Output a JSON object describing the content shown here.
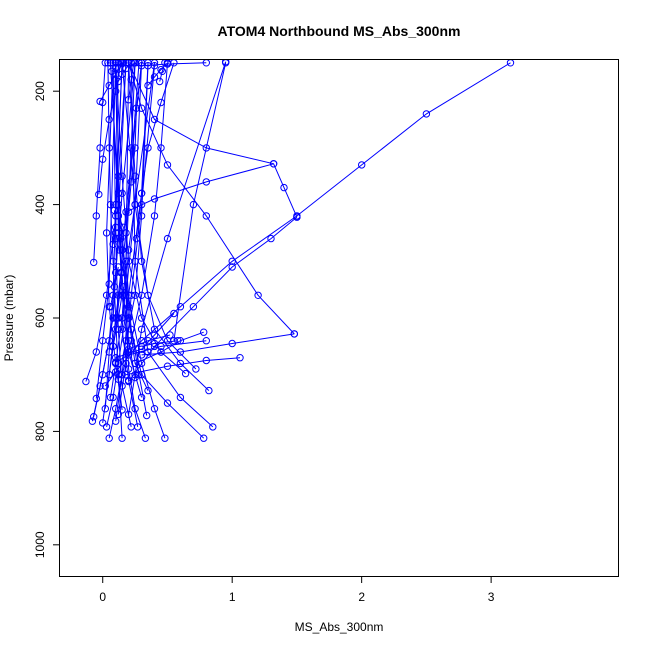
{
  "chart_data": {
    "type": "line",
    "title": "ATOM4 Northbound MS_Abs_300nm",
    "xlabel": "MS_Abs_300nm",
    "ylabel": "Pressure (mbar)",
    "xlim": [
      -0.33,
      3.98
    ],
    "ylim": [
      1055,
      145
    ],
    "y_reversed": true,
    "x_ticks": [
      0,
      1,
      2,
      3
    ],
    "y_ticks": [
      200,
      400,
      600,
      800,
      1000
    ],
    "x_tick_labels": [
      "0",
      "1",
      "2",
      "3"
    ],
    "y_tick_labels": [
      "200",
      "400",
      "600",
      "800",
      "1000"
    ],
    "grid": false,
    "legend": "none",
    "color": "#0000ff",
    "series": [
      {
        "x": [
          0.05,
          0.1,
          0.15,
          0.22,
          0.3,
          0.4,
          0.45,
          0.5
        ],
        "y": [
          812,
          760,
          700,
          640,
          560,
          420,
          300,
          150
        ]
      },
      {
        "x": [
          0.15,
          0.12,
          0.1,
          0.08,
          0.06,
          0.05,
          0.04
        ],
        "y": [
          812,
          700,
          600,
          500,
          400,
          300,
          150
        ]
      },
      {
        "x": [
          0.78,
          0.5,
          0.3,
          0.2,
          0.15,
          0.12,
          0.18
        ],
        "y": [
          812,
          750,
          700,
          600,
          480,
          350,
          150
        ]
      },
      {
        "x": [
          0.33,
          0.25,
          0.2,
          0.18,
          0.25,
          0.3
        ],
        "y": [
          812,
          760,
          690,
          560,
          400,
          150
        ]
      },
      {
        "x": [
          0.48,
          0.4,
          0.3,
          0.1,
          0.08
        ],
        "y": [
          812,
          760,
          680,
          450,
          150
        ]
      },
      {
        "x": [
          0.85,
          0.6,
          0.35,
          0.25,
          0.22
        ],
        "y": [
          792,
          740,
          660,
          500,
          150
        ]
      },
      {
        "x": [
          0.03,
          0.08,
          0.12,
          0.2,
          0.3,
          0.35
        ],
        "y": [
          792,
          740,
          680,
          560,
          380,
          150
        ]
      },
      {
        "x": [
          0.22,
          0.15,
          0.12,
          0.1,
          0.12
        ],
        "y": [
          792,
          720,
          620,
          460,
          150
        ]
      },
      {
        "x": [
          -0.08,
          -0.02,
          0.05,
          0.1,
          0.15,
          0.25
        ],
        "y": [
          782,
          720,
          640,
          520,
          380,
          150
        ]
      },
      {
        "x": [
          0.0,
          0.05,
          0.1,
          0.18,
          0.28
        ],
        "y": [
          785,
          700,
          600,
          450,
          150
        ]
      },
      {
        "x": [
          0.1,
          0.15,
          0.2,
          0.12,
          0.06
        ],
        "y": [
          782,
          700,
          580,
          380,
          150
        ]
      },
      {
        "x": [
          0.27,
          0.2,
          0.15,
          0.2,
          0.4
        ],
        "y": [
          792,
          710,
          620,
          480,
          150
        ]
      },
      {
        "x": [
          0.12,
          0.18,
          0.22,
          0.3,
          0.4
        ],
        "y": [
          770,
          680,
          560,
          400,
          155
        ]
      },
      {
        "x": [
          0.2,
          0.25,
          0.3,
          0.5,
          0.95
        ],
        "y": [
          770,
          700,
          620,
          460,
          148
        ]
      },
      {
        "x": [
          -0.07,
          0.0,
          0.08,
          0.12,
          0.1
        ],
        "y": [
          774,
          700,
          600,
          450,
          150
        ]
      },
      {
        "x": [
          0.02,
          0.05,
          0.08,
          0.1,
          0.15
        ],
        "y": [
          760,
          660,
          560,
          400,
          150
        ]
      },
      {
        "x": [
          0.34,
          0.28,
          0.22,
          0.18,
          0.2
        ],
        "y": [
          772,
          700,
          620,
          500,
          150
        ]
      },
      {
        "x": [
          0.15,
          0.1,
          0.05,
          0.03,
          0.08
        ],
        "y": [
          762,
          680,
          580,
          450,
          150
        ]
      },
      {
        "x": [
          0.06,
          0.1,
          0.15,
          0.18,
          0.22,
          0.25
        ],
        "y": [
          740,
          680,
          600,
          500,
          300,
          150
        ]
      },
      {
        "x": [
          -0.05,
          0.0,
          0.05,
          0.1
        ],
        "y": [
          742,
          640,
          540,
          150
        ]
      },
      {
        "x": [
          0.3,
          0.2,
          0.15,
          0.12,
          0.1
        ],
        "y": [
          740,
          660,
          560,
          420,
          150
        ]
      },
      {
        "x": [
          0.82,
          0.6,
          0.4,
          0.3,
          0.25,
          0.2
        ],
        "y": [
          728,
          680,
          620,
          500,
          350,
          150
        ]
      },
      {
        "x": [
          0.35,
          0.25,
          0.2,
          0.15,
          0.3
        ],
        "y": [
          728,
          680,
          600,
          480,
          150
        ]
      },
      {
        "x": [
          0.64,
          0.45,
          0.3,
          0.2,
          0.15,
          0.1
        ],
        "y": [
          698,
          660,
          600,
          500,
          350,
          150
        ]
      },
      {
        "x": [
          0.72,
          0.5,
          0.35,
          0.25,
          0.15
        ],
        "y": [
          690,
          640,
          560,
          400,
          150
        ]
      },
      {
        "x": [
          0.12,
          0.18,
          0.25,
          0.3,
          0.35
        ],
        "y": [
          708,
          640,
          560,
          420,
          155
        ]
      },
      {
        "x": [
          0.05,
          0.1,
          0.15,
          0.12,
          0.06
        ],
        "y": [
          700,
          620,
          520,
          400,
          150
        ]
      },
      {
        "x": [
          0.25,
          0.2,
          0.16,
          0.12,
          0.18
        ],
        "y": [
          705,
          640,
          560,
          420,
          150
        ]
      },
      {
        "x": [
          -0.13,
          -0.05,
          0.03,
          0.1,
          0.15
        ],
        "y": [
          712,
          660,
          560,
          420,
          150
        ]
      },
      {
        "x": [
          0.02,
          0.1,
          0.3,
          0.6,
          1.0,
          1.5,
          2.0,
          2.5,
          3.15
        ],
        "y": [
          720,
          695,
          640,
          580,
          500,
          420,
          330,
          240,
          150
        ]
      },
      {
        "x": [
          0.2,
          0.4,
          0.7,
          1.0,
          1.3,
          1.5
        ],
        "y": [
          712,
          650,
          580,
          510,
          460,
          422
        ]
      },
      {
        "x": [
          0.18,
          0.5,
          0.8,
          1.06
        ],
        "y": [
          700,
          685,
          675,
          670
        ]
      },
      {
        "x": [
          0.1,
          0.2,
          0.45,
          0.8
        ],
        "y": [
          678,
          665,
          650,
          640
        ]
      },
      {
        "x": [
          0.25,
          0.45,
          0.6,
          0.78
        ],
        "y": [
          680,
          660,
          640,
          625
        ]
      },
      {
        "x": [
          0.3,
          0.6,
          1.0,
          1.48
        ],
        "y": [
          665,
          660,
          645,
          628
        ]
      },
      {
        "x": [
          0.1,
          0.3,
          0.4,
          0.55
        ],
        "y": [
          670,
          655,
          630,
          592
        ]
      },
      {
        "x": [
          0.3,
          0.4,
          0.58
        ],
        "y": [
          650,
          645,
          640
        ]
      },
      {
        "x": [
          1.48,
          1.2,
          0.8,
          0.5,
          0.3,
          0.2
        ],
        "y": [
          628,
          560,
          420,
          330,
          230,
          150
        ]
      },
      {
        "x": [
          1.5,
          1.4,
          1.32,
          0.8,
          0.4,
          0.2
        ],
        "y": [
          422,
          370,
          328,
          300,
          250,
          150
        ]
      },
      {
        "x": [
          1.32,
          0.8,
          0.4,
          0.18
        ],
        "y": [
          328,
          360,
          390,
          413
        ]
      },
      {
        "x": [
          0.2,
          0.22,
          0.25,
          0.26,
          0.3
        ],
        "y": [
          413,
          360,
          300,
          230,
          150
        ]
      },
      {
        "x": [
          0.26,
          0.3,
          0.35,
          0.45,
          0.55
        ],
        "y": [
          460,
          380,
          300,
          220,
          150
        ]
      },
      {
        "x": [
          -0.07,
          -0.05,
          -0.02,
          0.0,
          0.02
        ],
        "y": [
          502,
          420,
          300,
          220,
          150
        ]
      },
      {
        "x": [
          -0.03,
          0.0,
          0.05,
          0.1,
          0.14
        ],
        "y": [
          382,
          320,
          250,
          200,
          150
        ]
      },
      {
        "x": [
          -0.02,
          0.05,
          0.1,
          0.16
        ],
        "y": [
          218,
          190,
          170,
          150
        ]
      },
      {
        "x": [
          0.12,
          0.15,
          0.18,
          0.22
        ],
        "y": [
          183,
          170,
          160,
          150
        ]
      },
      {
        "x": [
          0.35,
          0.4,
          0.45,
          0.5
        ],
        "y": [
          190,
          175,
          162,
          150
        ]
      },
      {
        "x": [
          0.44,
          0.46,
          0.48
        ],
        "y": [
          183,
          165,
          150
        ]
      },
      {
        "x": [
          0.3,
          0.5,
          0.8
        ],
        "y": [
          155,
          152,
          150
        ]
      },
      {
        "x": [
          0.07,
          0.1,
          0.12
        ],
        "y": [
          165,
          158,
          150
        ]
      },
      {
        "x": [
          0.2,
          0.22,
          0.24
        ],
        "y": [
          215,
          180,
          150
        ]
      },
      {
        "x": [
          0.55,
          0.7,
          0.95
        ],
        "y": [
          640,
          400,
          150
        ]
      },
      {
        "x": [
          0.2,
          0.35,
          0.52
        ],
        "y": [
          655,
          640,
          630
        ]
      },
      {
        "x": [
          0.08,
          0.12,
          0.16
        ],
        "y": [
          650,
          600,
          545
        ]
      },
      {
        "x": [
          0.11,
          0.12,
          0.14
        ],
        "y": [
          600,
          560,
          520
        ]
      },
      {
        "x": [
          0.06,
          0.09,
          0.12
        ],
        "y": [
          580,
          545,
          510
        ]
      },
      {
        "x": [
          0.13,
          0.14,
          0.16,
          0.12
        ],
        "y": [
          480,
          460,
          440,
          420
        ]
      },
      {
        "x": [
          0.08,
          0.1,
          0.09
        ],
        "y": [
          470,
          440,
          410
        ]
      }
    ]
  }
}
